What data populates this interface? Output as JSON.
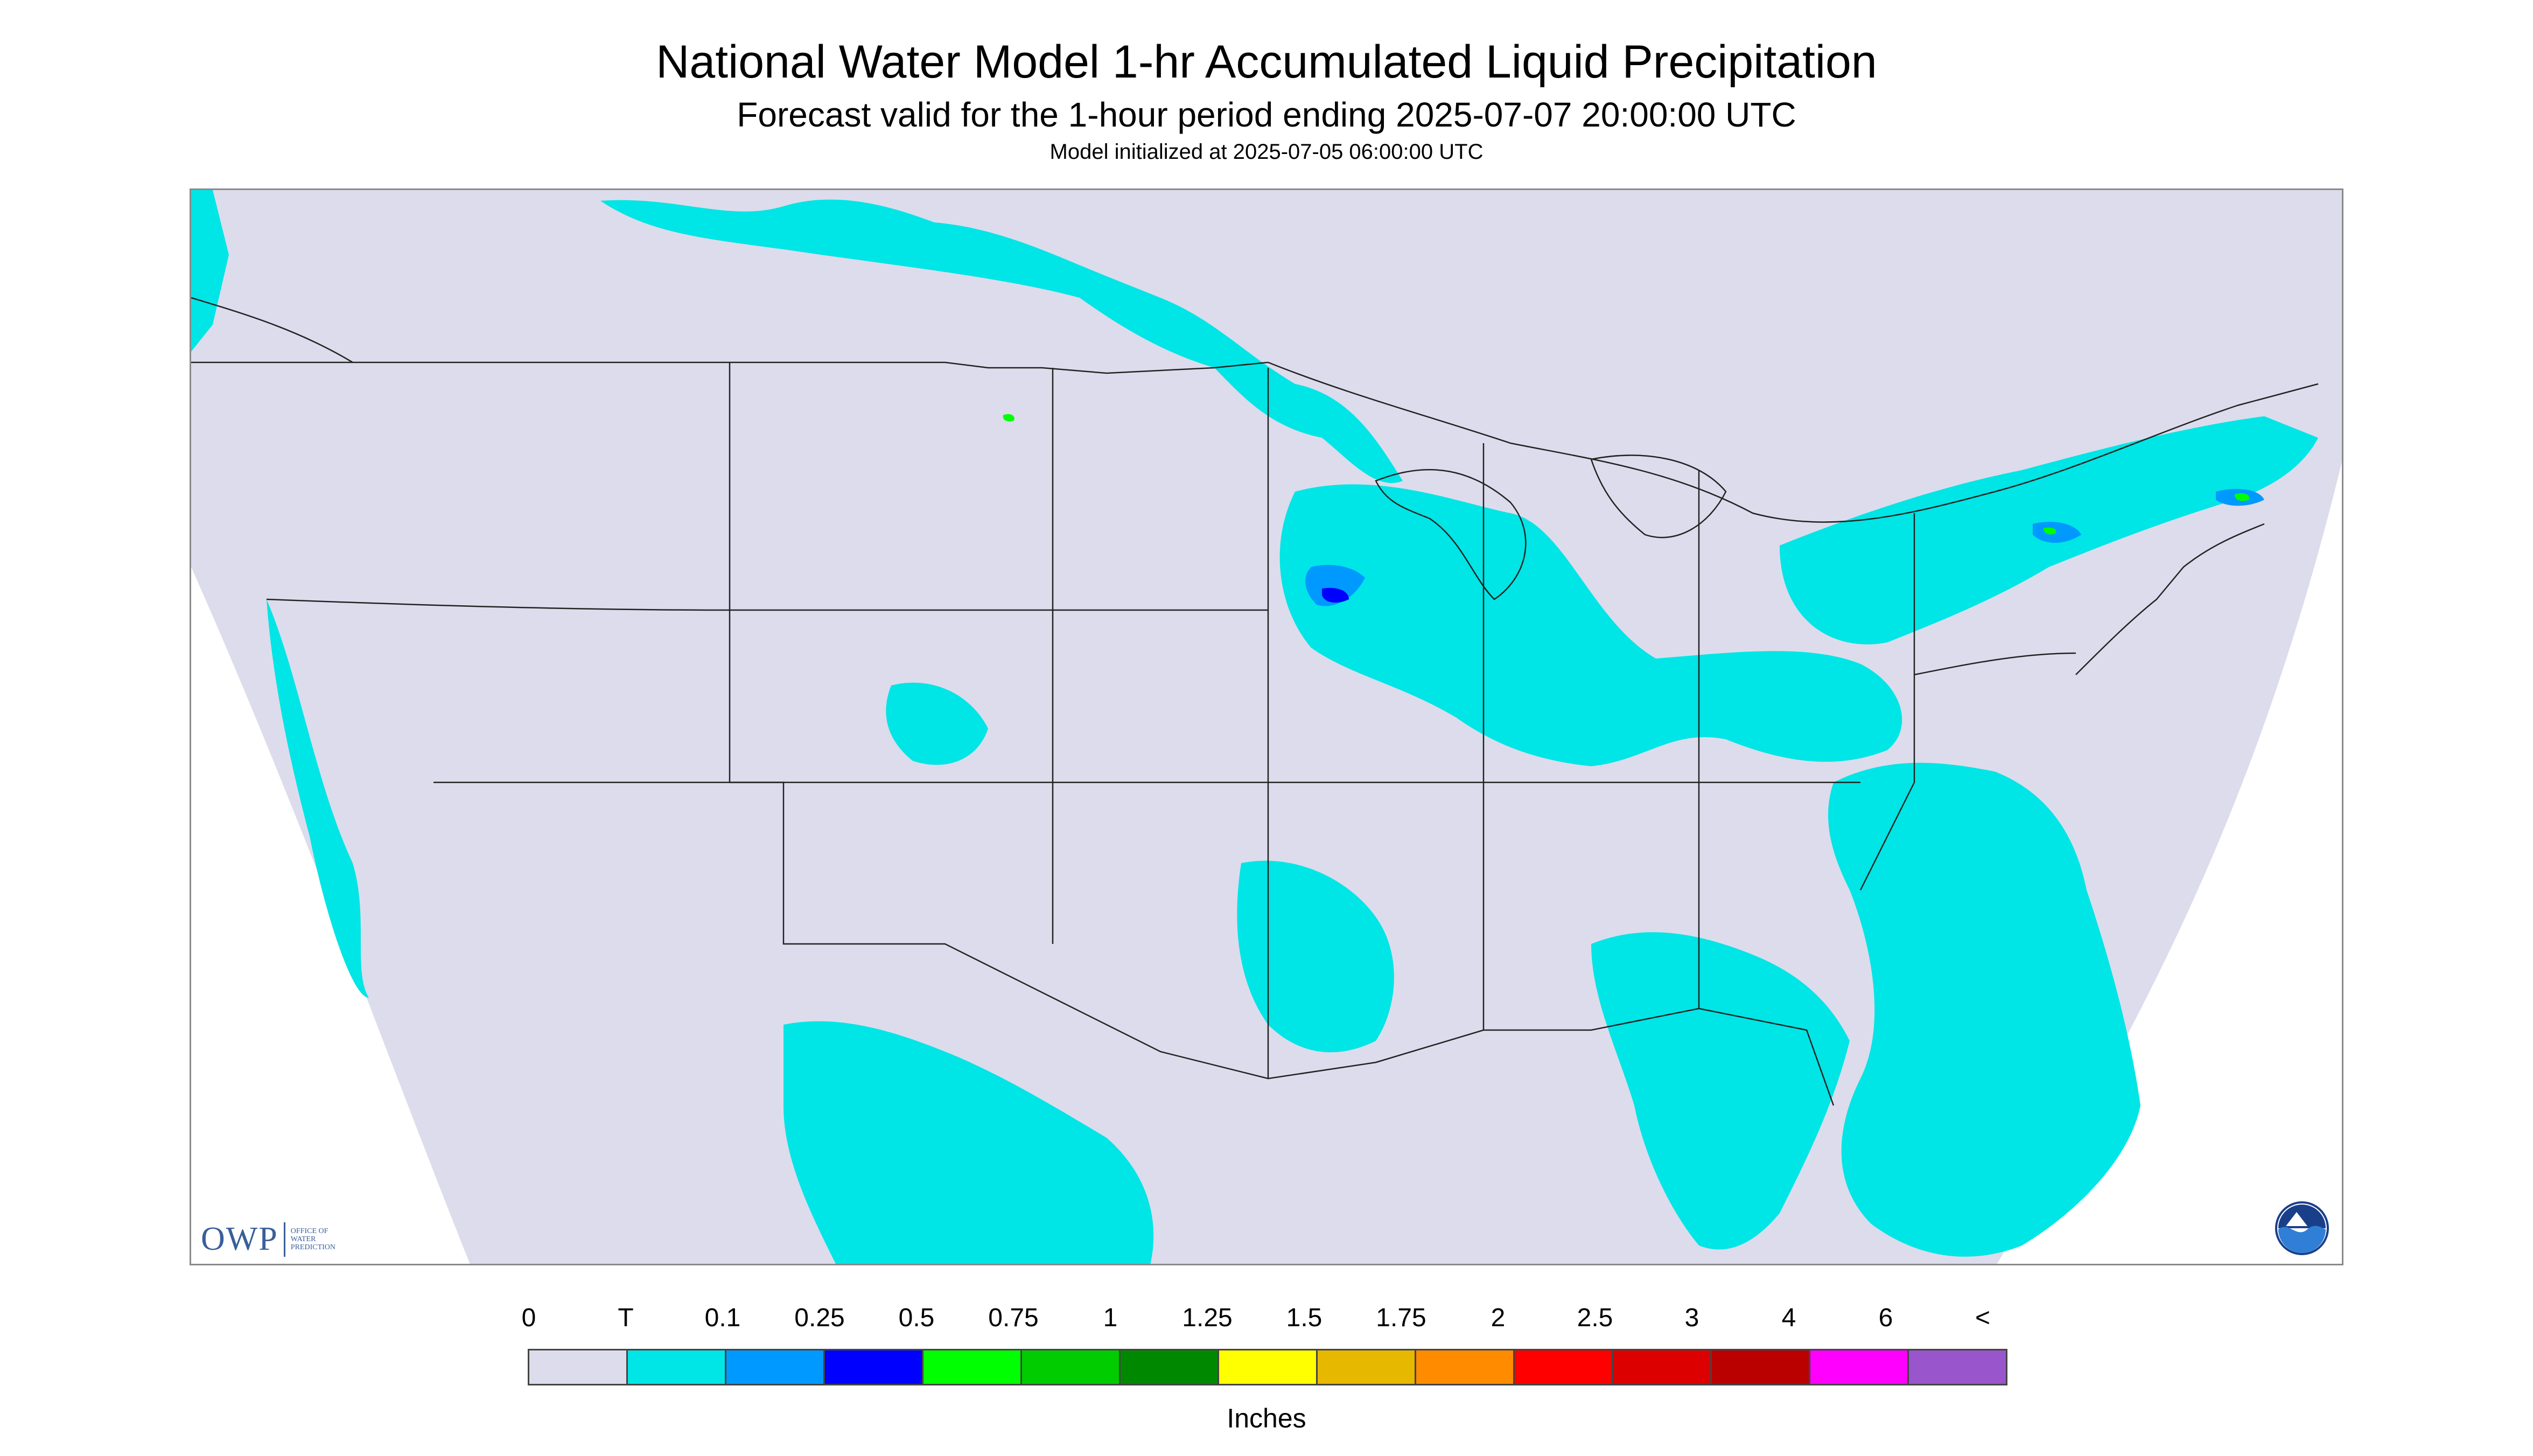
{
  "header": {
    "title": "National Water Model 1-hr Accumulated Liquid Precipitation",
    "subtitle": "Forecast valid for the 1-hour period ending 2025-07-07 20:00:00 UTC",
    "init_line": "Model initialized at 2025-07-05 06:00:00 UTC"
  },
  "map": {
    "background_color": "#dcdcec",
    "land_line_color": "#222222",
    "precip_light_color": "#00e5e5",
    "precip_moderate_color": "#0099ff",
    "precip_heavy_color": "#0000ff",
    "precip_green_color": "#00ff00"
  },
  "logos": {
    "owp_mark": "OWP",
    "owp_text": [
      "OFFICE OF",
      "WATER",
      "PREDICTION"
    ],
    "noaa_label": "NOAA"
  },
  "legend": {
    "tick_labels": [
      "0",
      "T",
      "0.1",
      "0.25",
      "0.5",
      "0.75",
      "1",
      "1.25",
      "1.5",
      "1.75",
      "2",
      "2.5",
      "3",
      "4",
      "6",
      "<"
    ],
    "colors": [
      "#dcdcec",
      "#00e5e5",
      "#0099ff",
      "#0000ff",
      "#00ff00",
      "#00cc00",
      "#008800",
      "#ffff00",
      "#e6b800",
      "#ff8c00",
      "#ff0000",
      "#dd0000",
      "#bb0000",
      "#ff00ff",
      "#9955cc"
    ],
    "units": "Inches"
  }
}
